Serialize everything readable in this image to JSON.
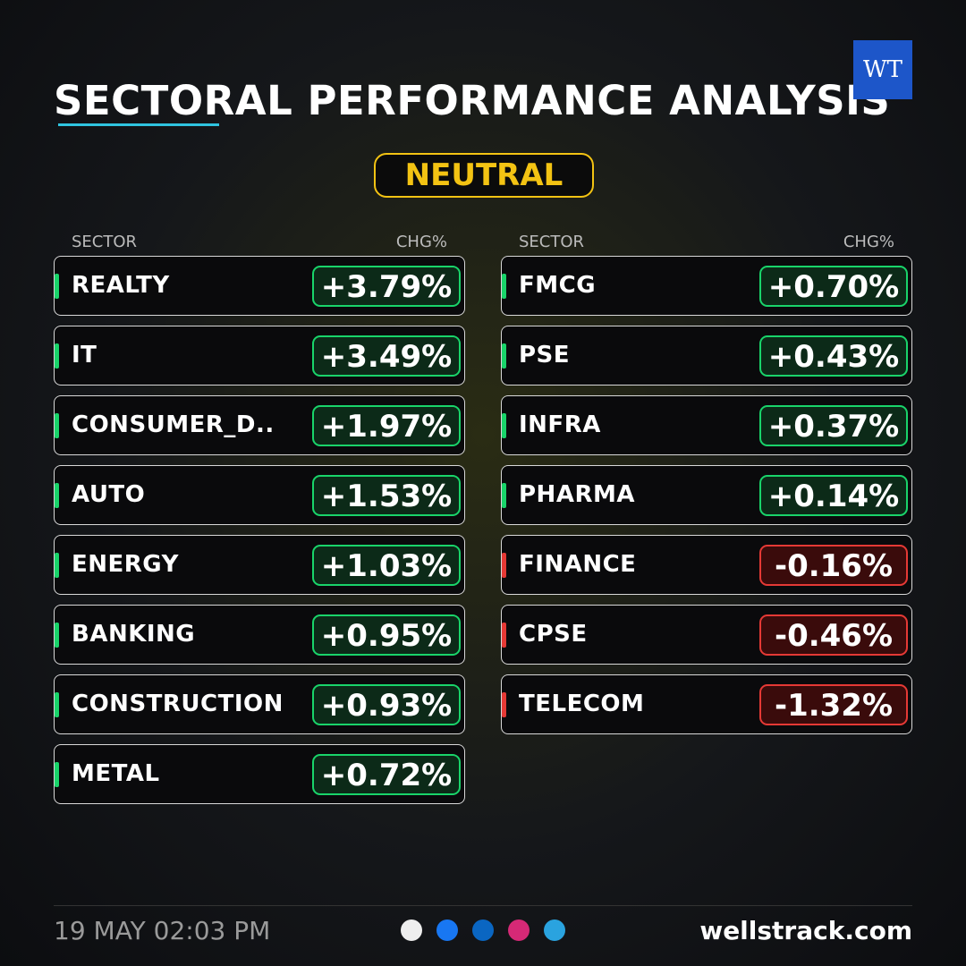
{
  "header": {
    "title": "SECTORAL PERFORMANCE ANALYSIS",
    "badge": "NEUTRAL",
    "logo": "WT"
  },
  "columns": [
    {
      "headers": [
        "SECTOR",
        "CHG%"
      ],
      "rows": [
        [
          "REALTY",
          "+3.79%"
        ],
        [
          "IT",
          "+3.49%"
        ],
        [
          "CONSUMER_D..",
          "+1.97%"
        ],
        [
          "AUTO",
          "+1.53%"
        ],
        [
          "ENERGY",
          "+1.03%"
        ],
        [
          "BANKING",
          "+0.95%"
        ],
        [
          "CONSTRUCTION",
          "+0.93%"
        ],
        [
          "METAL",
          "+0.72%"
        ]
      ]
    },
    {
      "headers": [
        "SECTOR",
        "CHG%"
      ],
      "rows": [
        [
          "FMCG",
          "+0.70%"
        ],
        [
          "PSE",
          "+0.43%"
        ],
        [
          "INFRA",
          "+0.37%"
        ],
        [
          "PHARMA",
          "+0.14%"
        ],
        [
          "FINANCE",
          "-0.16%"
        ],
        [
          "CPSE",
          "-0.46%"
        ],
        [
          "TELECOM",
          "-1.32%"
        ]
      ]
    }
  ],
  "footer": {
    "date": "19 MAY 02:03 PM",
    "website": "wellstrack.com"
  }
}
